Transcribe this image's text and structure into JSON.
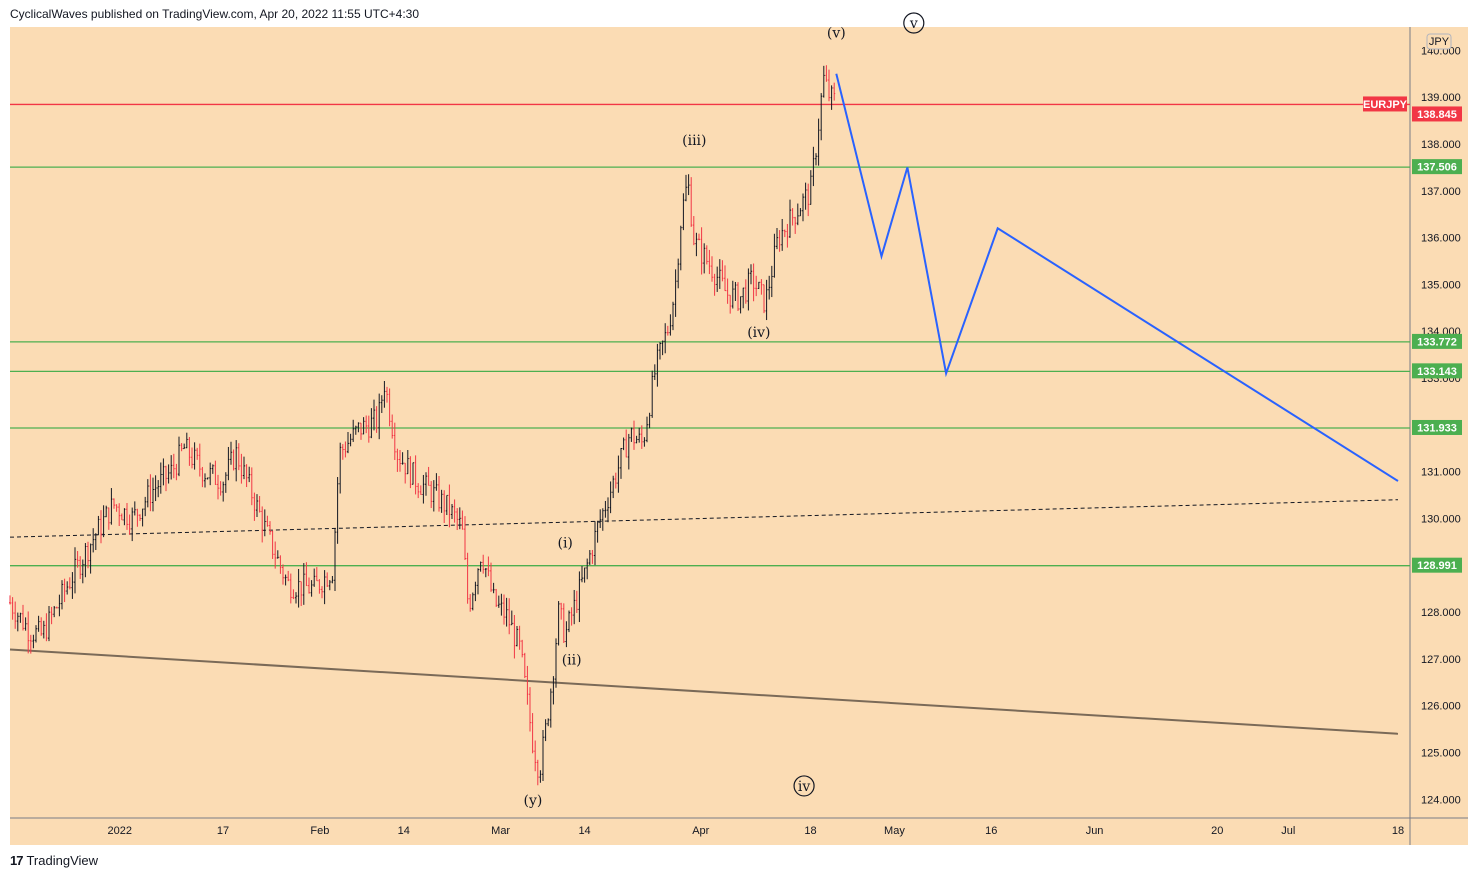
{
  "header": {
    "published_text": "CyclicalWaves published on TradingView.com, Apr 20, 2022 11:55 UTC+4:30"
  },
  "footer": {
    "logo_glyph": "17",
    "brand": "TradingView"
  },
  "colors": {
    "background": "#fbdcb4",
    "symbol_line": "#f23645",
    "level_line": "#4caf50",
    "projection": "#2962ff",
    "trendline": "#7a6a58",
    "candle_up": "#131722",
    "candle_down": "#f23645"
  },
  "chart_data": {
    "type": "candlestick",
    "symbol": "EURJPY",
    "currency": "JPY",
    "ylim": [
      123.6,
      140.5
    ],
    "y_ticks": [
      124,
      125,
      126,
      127,
      128,
      129,
      130,
      131,
      132,
      133,
      134,
      135,
      136,
      137,
      138,
      139,
      140
    ],
    "x_ticks": [
      {
        "label": "2022",
        "date": "2022-01-01"
      },
      {
        "label": "17",
        "date": "2022-01-17"
      },
      {
        "label": "Feb",
        "date": "2022-02-01"
      },
      {
        "label": "14",
        "date": "2022-02-14"
      },
      {
        "label": "Mar",
        "date": "2022-03-01"
      },
      {
        "label": "14",
        "date": "2022-03-14"
      },
      {
        "label": "Apr",
        "date": "2022-04-01"
      },
      {
        "label": "18",
        "date": "2022-04-18"
      },
      {
        "label": "May",
        "date": "2022-05-01"
      },
      {
        "label": "16",
        "date": "2022-05-16"
      },
      {
        "label": "Jun",
        "date": "2022-06-01"
      },
      {
        "label": "20",
        "date": "2022-06-20"
      },
      {
        "label": "Jul",
        "date": "2022-07-01"
      },
      {
        "label": "18",
        "date": "2022-07-18"
      }
    ],
    "last_price": {
      "label": "EURJPY",
      "value": "138.845"
    },
    "levels": [
      "137.506",
      "133.772",
      "133.143",
      "131.933",
      "128.991"
    ],
    "price_path": [
      [
        "2021-12-15",
        128.2
      ],
      [
        "2021-12-18",
        127.6
      ],
      [
        "2021-12-20",
        127.5
      ],
      [
        "2021-12-24",
        128.6
      ],
      [
        "2021-12-28",
        129.6
      ],
      [
        "2021-12-31",
        130.3
      ],
      [
        "2022-01-03",
        130.0
      ],
      [
        "2022-01-06",
        130.6
      ],
      [
        "2022-01-09",
        131.0
      ],
      [
        "2022-01-11",
        131.5
      ],
      [
        "2022-01-14",
        131.0
      ],
      [
        "2022-01-17",
        130.8
      ],
      [
        "2022-01-19",
        131.4
      ],
      [
        "2022-01-21",
        130.7
      ],
      [
        "2022-01-24",
        129.6
      ],
      [
        "2022-01-27",
        128.6
      ],
      [
        "2022-01-31",
        128.5
      ],
      [
        "2022-02-03",
        128.9
      ],
      [
        "2022-02-04",
        131.4
      ],
      [
        "2022-02-07",
        131.9
      ],
      [
        "2022-02-10",
        132.1
      ],
      [
        "2022-02-11",
        132.9
      ],
      [
        "2022-02-13",
        131.4
      ],
      [
        "2022-02-16",
        130.8
      ],
      [
        "2022-02-18",
        130.6
      ],
      [
        "2022-02-21",
        130.2
      ],
      [
        "2022-02-23",
        129.8
      ],
      [
        "2022-02-24",
        128.1
      ],
      [
        "2022-02-26",
        129.3
      ],
      [
        "2022-02-28",
        128.2
      ],
      [
        "2022-03-02",
        127.9
      ],
      [
        "2022-03-04",
        127.2
      ],
      [
        "2022-03-06",
        125.2
      ],
      [
        "2022-03-07",
        124.6
      ],
      [
        "2022-03-08",
        125.5
      ],
      [
        "2022-03-09",
        126.6
      ],
      [
        "2022-03-10",
        128.0
      ],
      [
        "2022-03-11",
        127.5
      ],
      [
        "2022-03-14",
        128.8
      ],
      [
        "2022-03-16",
        129.8
      ],
      [
        "2022-03-18",
        130.6
      ],
      [
        "2022-03-21",
        131.8
      ],
      [
        "2022-03-23",
        131.6
      ],
      [
        "2022-03-25",
        133.2
      ],
      [
        "2022-03-27",
        134.1
      ],
      [
        "2022-03-28",
        134.9
      ],
      [
        "2022-03-29",
        136.5
      ],
      [
        "2022-03-30",
        137.2
      ],
      [
        "2022-03-31",
        135.9
      ],
      [
        "2022-04-03",
        135.3
      ],
      [
        "2022-04-05",
        134.8
      ],
      [
        "2022-04-07",
        134.7
      ],
      [
        "2022-04-09",
        135.1
      ],
      [
        "2022-04-11",
        134.6
      ],
      [
        "2022-04-13",
        136.0
      ],
      [
        "2022-04-15",
        136.4
      ],
      [
        "2022-04-17",
        136.8
      ],
      [
        "2022-04-18",
        137.0
      ],
      [
        "2022-04-19",
        138.1
      ],
      [
        "2022-04-20",
        139.4
      ],
      [
        "2022-04-21",
        139.0
      ],
      [
        "2022-04-22",
        138.9
      ]
    ],
    "projection": [
      [
        "2022-04-22",
        139.5
      ],
      [
        "2022-04-29",
        135.6
      ],
      [
        "2022-05-03",
        137.5
      ],
      [
        "2022-05-09",
        133.1
      ],
      [
        "2022-05-17",
        136.2
      ],
      [
        "2022-07-18",
        130.8
      ]
    ],
    "trendline": [
      [
        "2021-12-15",
        127.2
      ],
      [
        "2022-07-18",
        125.4
      ]
    ],
    "midline": [
      [
        "2021-12-15",
        129.6
      ],
      [
        "2022-07-18",
        130.4
      ]
    ],
    "wave_labels": [
      {
        "text": "(iii)",
        "date": "2022-03-31",
        "price": 138.0
      },
      {
        "text": "(v)",
        "date": "2022-04-22",
        "price": 140.3
      },
      {
        "text": "v",
        "date": "2022-05-04",
        "price": 140.5,
        "circled": true
      },
      {
        "text": "(iv)",
        "date": "2022-04-10",
        "price": 133.9
      },
      {
        "text": "(i)",
        "date": "2022-03-11",
        "price": 129.4
      },
      {
        "text": "(ii)",
        "date": "2022-03-12",
        "price": 126.9
      },
      {
        "text": "(y)",
        "date": "2022-03-06",
        "price": 123.9
      },
      {
        "text": "iv",
        "date": "2022-04-17",
        "price": 124.2,
        "circled": true
      }
    ]
  }
}
